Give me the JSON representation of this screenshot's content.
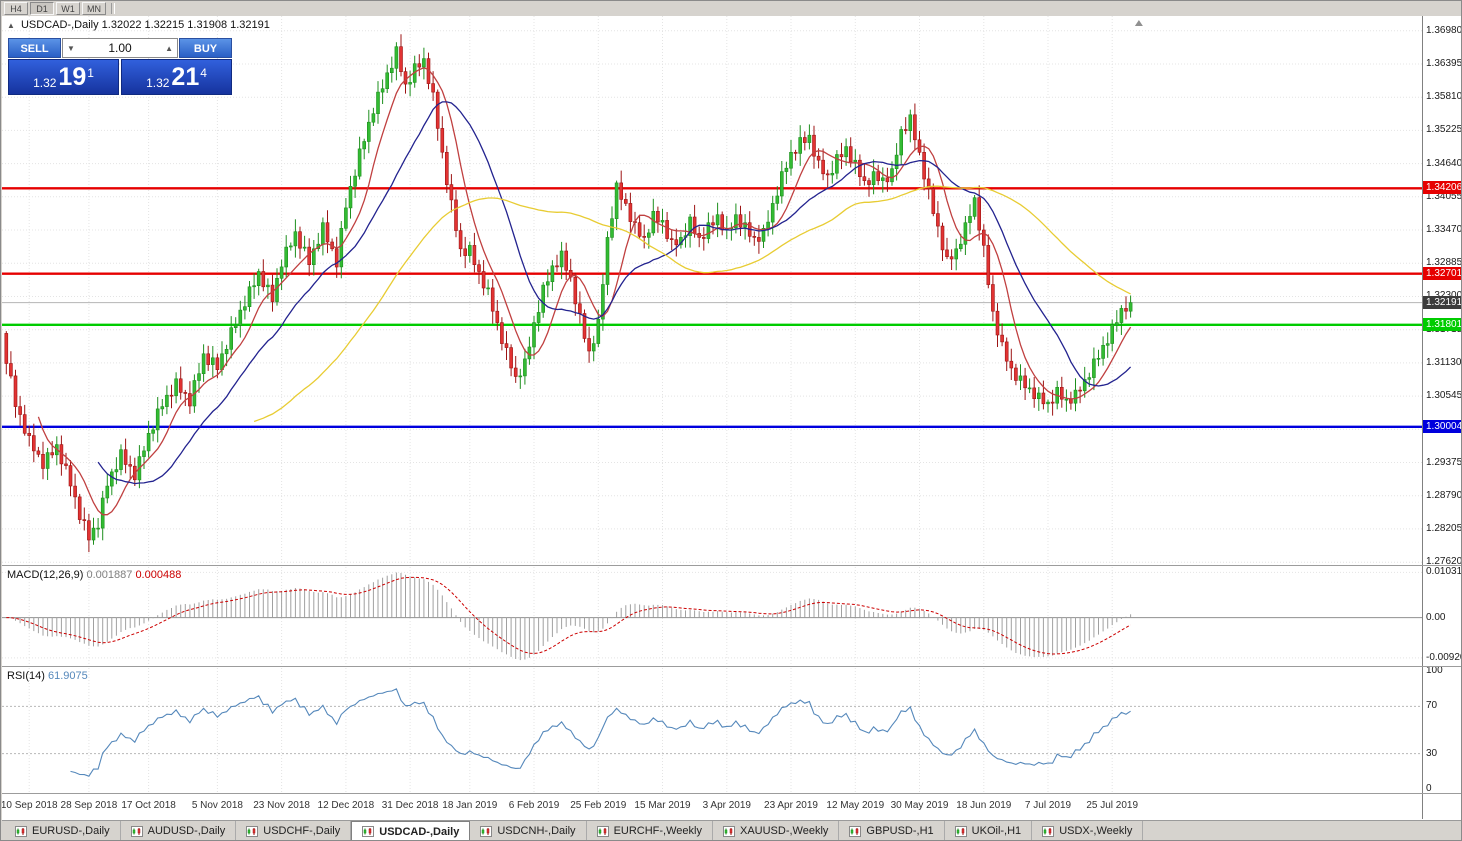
{
  "window": {
    "app": "MetaTrader chart terminal"
  },
  "toolbar": {
    "timeframes": [
      "H4",
      "D1",
      "W1",
      "MN"
    ],
    "active": "D1"
  },
  "chart": {
    "collapse_icon": "▲",
    "symbol_label": "USDCAD-,Daily",
    "ohlc": "1.32022 1.32215 1.31908 1.32191"
  },
  "trade_panel": {
    "sell_label": "SELL",
    "buy_label": "BUY",
    "volume": "1.00",
    "sell_price_main": "1.32",
    "sell_price_big": "19",
    "sell_price_sup": "1",
    "buy_price_main": "1.32",
    "buy_price_big": "21",
    "buy_price_sup": "4"
  },
  "price_axis": {
    "labels": [
      "1.36980",
      "1.36395",
      "1.35810",
      "1.35225",
      "1.34640",
      "1.34055",
      "1.33470",
      "1.32885",
      "1.32300",
      "1.31715",
      "1.31130",
      "1.30545",
      "1.29960",
      "1.29375",
      "1.28790",
      "1.28205",
      "1.27620"
    ]
  },
  "hlines": [
    {
      "price": 1.34206,
      "label": "1.34206",
      "color": "#e60000"
    },
    {
      "price": 1.32701,
      "label": "1.32701",
      "color": "#e60000"
    },
    {
      "price": 1.31801,
      "label": "1.31801",
      "color": "#00cc00"
    },
    {
      "price": 1.30004,
      "label": "1.30004",
      "color": "#0000dd"
    }
  ],
  "current_price": {
    "value": 1.32191,
    "label": "1.32191",
    "color": "#3c3c3c"
  },
  "chart_data": {
    "type": "candlestick",
    "symbol": "USDCAD",
    "timeframe": "Daily",
    "price_range": {
      "top": 1.3724,
      "bottom": 1.2757
    },
    "first_open": 1.3165,
    "x_labels": [
      "10 Sep 2018",
      "28 Sep 2018",
      "17 Oct 2018",
      "5 Nov 2018",
      "23 Nov 2018",
      "12 Dec 2018",
      "31 Dec 2018",
      "18 Jan 2019",
      "6 Feb 2019",
      "25 Feb 2019",
      "15 Mar 2019",
      "3 Apr 2019",
      "23 Apr 2019",
      "12 May 2019",
      "30 May 2019",
      "18 Jun 2019",
      "7 Jul 2019",
      "25 Jul 2019"
    ],
    "x_label_indices": [
      5,
      18,
      31,
      46,
      60,
      74,
      88,
      101,
      115,
      129,
      143,
      157,
      171,
      185,
      199,
      213,
      227,
      241
    ],
    "closes": [
      1.3112,
      1.309,
      1.3036,
      1.3022,
      1.2989,
      1.2985,
      1.2958,
      1.2952,
      1.2927,
      1.2955,
      1.2951,
      1.2969,
      1.2935,
      1.2932,
      1.2896,
      1.2877,
      1.2837,
      1.2835,
      1.2801,
      1.2822,
      1.2822,
      1.2875,
      1.2896,
      1.2921,
      1.2925,
      1.296,
      1.2934,
      1.2931,
      1.2907,
      1.2948,
      1.2958,
      1.2989,
      1.2995,
      1.3032,
      1.3036,
      1.3056,
      1.3055,
      1.3085,
      1.3061,
      1.3059,
      1.3037,
      1.3082,
      1.3094,
      1.3129,
      1.311,
      1.3122,
      1.3101,
      1.3129,
      1.3137,
      1.3175,
      1.3179,
      1.3206,
      1.3212,
      1.3247,
      1.3249,
      1.3274,
      1.3247,
      1.325,
      1.3221,
      1.3262,
      1.3282,
      1.3317,
      1.3319,
      1.3344,
      1.3315,
      1.3317,
      1.3286,
      1.3314,
      1.3322,
      1.336,
      1.3326,
      1.3314,
      1.3282,
      1.335,
      1.3386,
      1.3424,
      1.3442,
      1.349,
      1.3503,
      1.3537,
      1.3552,
      1.359,
      1.3596,
      1.3624,
      1.3632,
      1.367,
      1.3626,
      1.3604,
      1.3607,
      1.364,
      1.3634,
      1.3649,
      1.3605,
      1.359,
      1.3526,
      1.3484,
      1.3427,
      1.34,
      1.3346,
      1.3314,
      1.3302,
      1.332,
      1.3286,
      1.3274,
      1.3245,
      1.3245,
      1.3204,
      1.3184,
      1.3147,
      1.314,
      1.3104,
      1.3089,
      1.309,
      1.312,
      1.3141,
      1.3184,
      1.3202,
      1.325,
      1.3256,
      1.3284,
      1.3282,
      1.331,
      1.3276,
      1.3264,
      1.3217,
      1.32,
      1.3156,
      1.3134,
      1.3147,
      1.319,
      1.3251,
      1.3334,
      1.3367,
      1.343,
      1.3401,
      1.3394,
      1.3362,
      1.336,
      1.3336,
      1.3334,
      1.3342,
      1.338,
      1.3361,
      1.3364,
      1.3332,
      1.333,
      1.3321,
      1.3334,
      1.3337,
      1.337,
      1.3341,
      1.3334,
      1.3332,
      1.336,
      1.3356,
      1.3374,
      1.3347,
      1.335,
      1.3351,
      1.3374,
      1.3352,
      1.336,
      1.3336,
      1.3334,
      1.3327,
      1.335,
      1.3361,
      1.3394,
      1.3407,
      1.345,
      1.3456,
      1.3484,
      1.3482,
      1.351,
      1.3501,
      1.3514,
      1.3477,
      1.347,
      1.3446,
      1.3444,
      1.3447,
      1.348,
      1.3476,
      1.3494,
      1.3467,
      1.347,
      1.3441,
      1.3434,
      1.3427,
      1.345,
      1.3434,
      1.3439,
      1.3432,
      1.3455,
      1.3479,
      1.3524,
      1.3522,
      1.355,
      1.3506,
      1.3484,
      1.3437,
      1.342,
      1.3376,
      1.3354,
      1.3312,
      1.33,
      1.3296,
      1.3314,
      1.3322,
      1.336,
      1.3371,
      1.3404,
      1.3347,
      1.332,
      1.3251,
      1.3204,
      1.3162,
      1.315,
      1.3116,
      1.3104,
      1.3082,
      1.309,
      1.3069,
      1.3069,
      1.305,
      1.306,
      1.3041,
      1.3044,
      1.3042,
      1.307,
      1.3049,
      1.3049,
      1.3042,
      1.3065,
      1.3064,
      1.3084,
      1.3087,
      1.312,
      1.3121,
      1.3144,
      1.3147,
      1.318,
      1.3184,
      1.3209,
      1.3204,
      1.32191
    ],
    "up_color": "#33bb33",
    "up_border": "#1e8f1e",
    "down_color": "#e23333",
    "down_border": "#9c1414",
    "moving_averages": [
      {
        "period": 8,
        "color": "#c04040"
      },
      {
        "period": 21,
        "color": "#23238f"
      },
      {
        "period": 55,
        "color": "#e8cc33"
      }
    ],
    "macd": {
      "label": "MACD(12,26,9)",
      "value_main": "0.001887",
      "value_signal": "0.000488",
      "fast": 12,
      "slow": 26,
      "signal": 9,
      "axis_labels": [
        "0.010311",
        "0.00",
        "-0.009203"
      ],
      "hist_color": "#a0a0a0",
      "signal_color": "#cc0000",
      "scale_max": 0.0103
    },
    "rsi": {
      "label": "RSI(14)",
      "value": "61.9075",
      "period": 14,
      "levels": [
        70,
        30
      ],
      "axis_labels": [
        100,
        70,
        30,
        0
      ],
      "line_color": "#5588bb"
    }
  },
  "bottom_tabs": {
    "active_index": 3,
    "items": [
      "EURUSD-,Daily",
      "AUDUSD-,Daily",
      "USDCHF-,Daily",
      "USDCAD-,Daily",
      "USDCNH-,Daily",
      "EURCHF-,Weekly",
      "XAUUSD-,Weekly",
      "GBPUSD-,H1",
      "UKOil-,H1",
      "USDX-,Weekly"
    ]
  }
}
